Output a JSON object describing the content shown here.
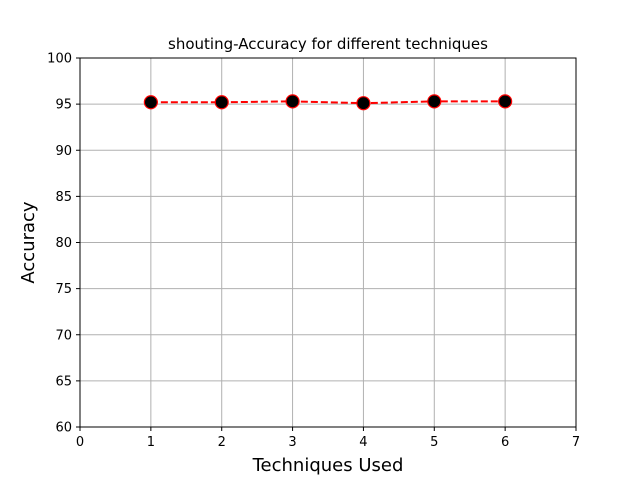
{
  "chart_data": {
    "type": "line",
    "title": "shouting-Accuracy for different techniques",
    "xlabel": "Techniques Used",
    "ylabel": "Accuracy",
    "xlim": [
      0,
      7
    ],
    "ylim": [
      60,
      100
    ],
    "xticks": [
      0,
      1,
      2,
      3,
      4,
      5,
      6,
      7
    ],
    "yticks": [
      60,
      65,
      70,
      75,
      80,
      85,
      90,
      95,
      100
    ],
    "grid": true,
    "series": [
      {
        "x": [
          1,
          2,
          3,
          4,
          5,
          6
        ],
        "values": [
          95.2,
          95.2,
          95.3,
          95.1,
          95.3,
          95.3
        ],
        "line_color": "#ff0000",
        "line_style": "dashed",
        "marker": "circle",
        "marker_fill": "#000000",
        "marker_edge": "#ff0000"
      }
    ]
  }
}
